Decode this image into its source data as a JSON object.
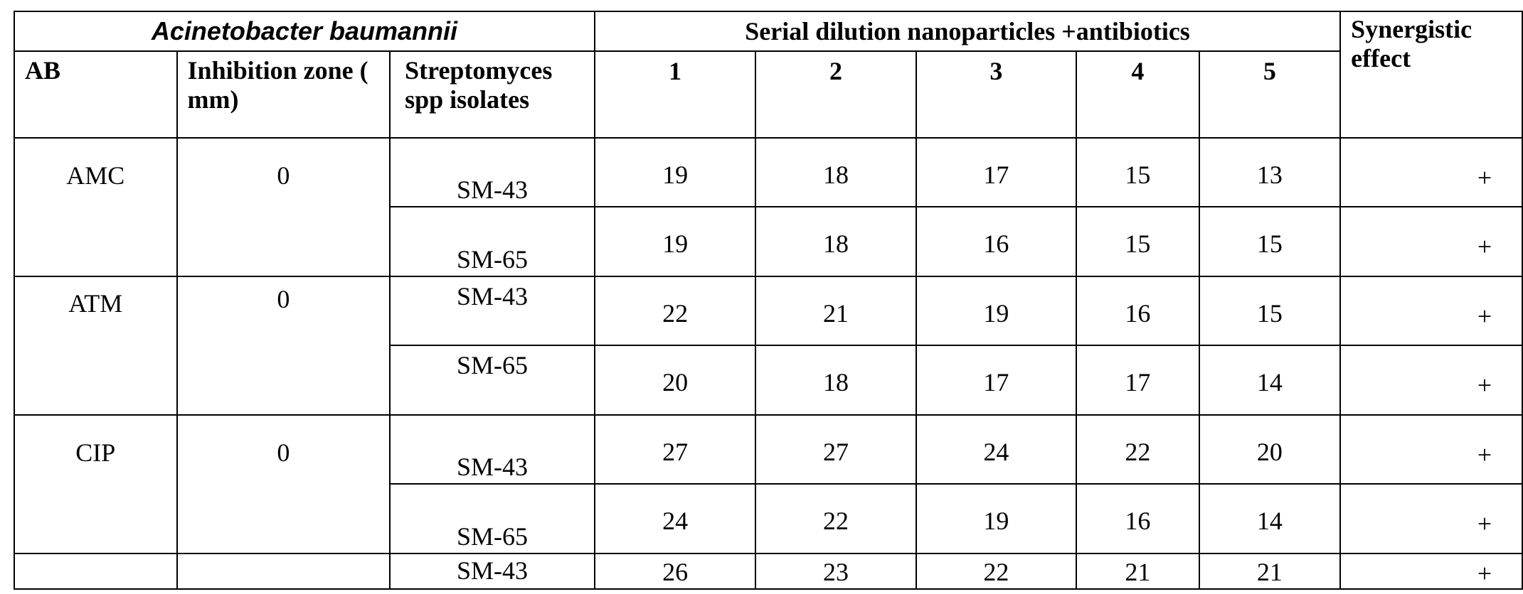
{
  "table": {
    "organism": "Acinetobacter baumannii",
    "dilution_header": "Serial  dilution nanoparticles +antibiotics",
    "synergy_header": "Synergistic effect",
    "col_ab": "AB",
    "col_zone": "Inhibition zone   ( mm)",
    "col_isolate": "Streptomyces spp isolates",
    "dilutions": [
      "1",
      "2",
      "3",
      "4",
      "5"
    ],
    "groups": [
      {
        "ab": "AMC",
        "zone": "0",
        "rows": [
          {
            "isolate": "SM-43",
            "values": [
              "19",
              "18",
              "17",
              "15",
              "13"
            ],
            "effect": "+"
          },
          {
            "isolate": "SM-65",
            "values": [
              "19",
              "18",
              "16",
              "15",
              "15"
            ],
            "effect": "+"
          }
        ]
      },
      {
        "ab": "ATM",
        "zone": "0",
        "rows": [
          {
            "isolate": "SM-43",
            "values": [
              "22",
              "21",
              "19",
              "16",
              "15"
            ],
            "effect": "+"
          },
          {
            "isolate": "SM-65",
            "values": [
              "20",
              "18",
              "17",
              "17",
              "14"
            ],
            "effect": "+"
          }
        ]
      },
      {
        "ab": "CIP",
        "zone": "0",
        "rows": [
          {
            "isolate": "SM-43",
            "values": [
              "27",
              "27",
              "24",
              "22",
              "20"
            ],
            "effect": "+"
          },
          {
            "isolate": "SM-65",
            "values": [
              "24",
              "22",
              "19",
              "16",
              "14"
            ],
            "effect": "+"
          }
        ]
      },
      {
        "ab": "",
        "zone": "",
        "rows": [
          {
            "isolate": "SM-43",
            "values": [
              "26",
              "23",
              "22",
              "21",
              "21"
            ],
            "effect": "+"
          }
        ]
      }
    ]
  }
}
